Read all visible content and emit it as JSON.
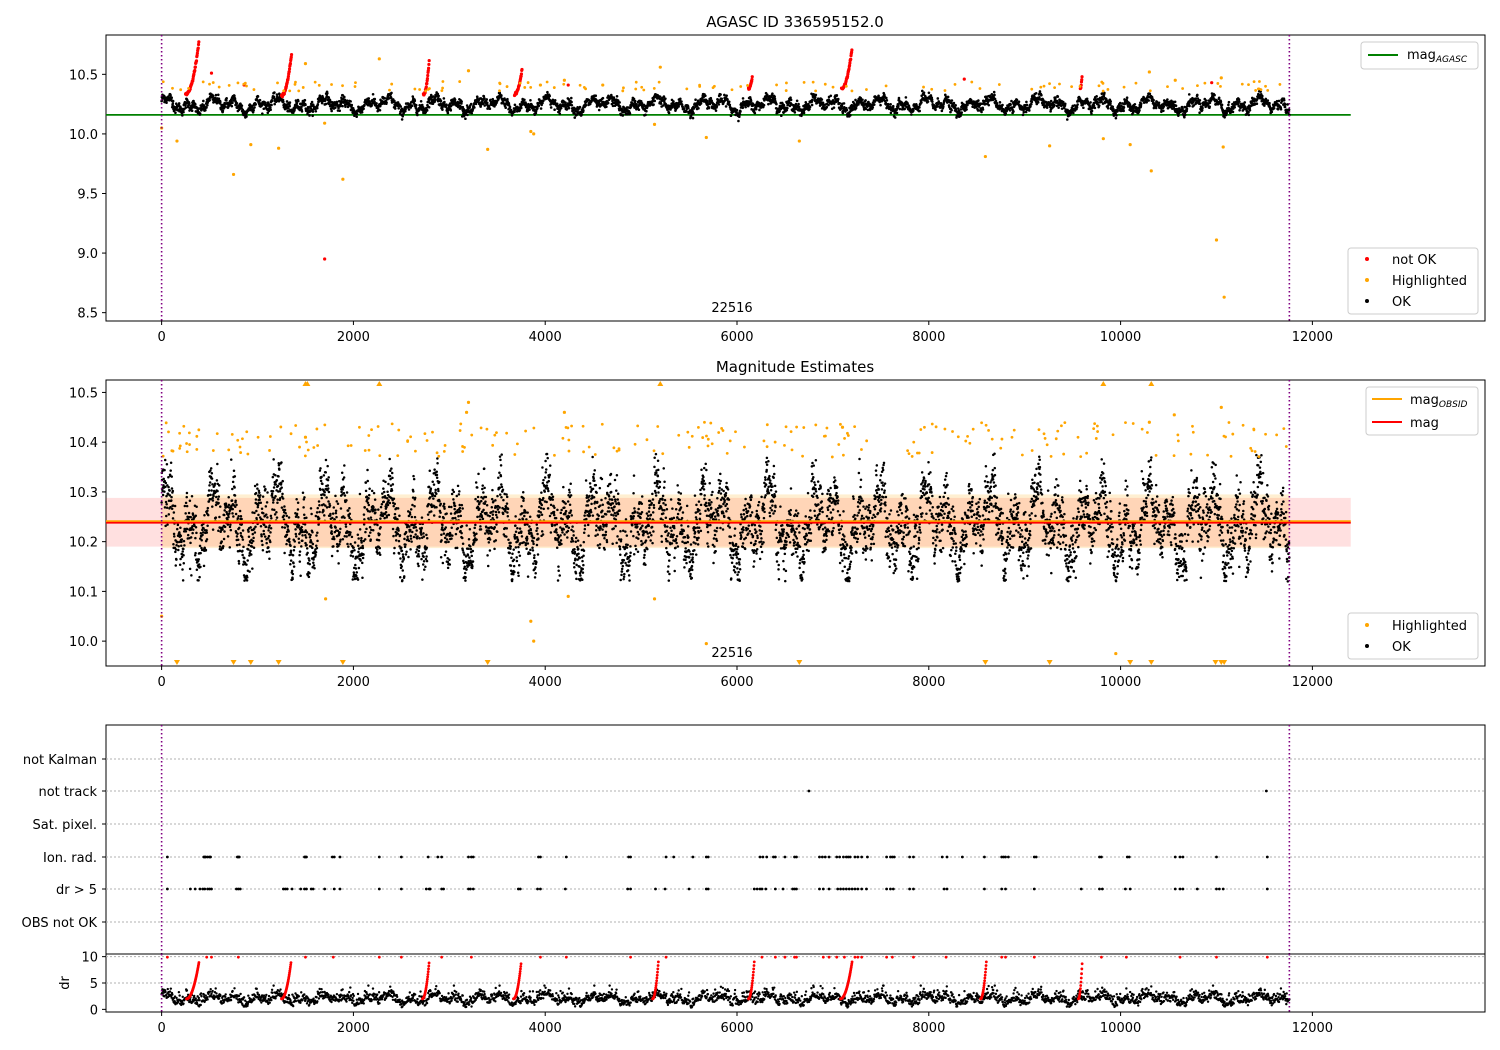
{
  "chart_data": [
    {
      "type": "scatter",
      "title": "AGASC ID 336595152.0",
      "xlabel": "",
      "ylabel": "",
      "xlim": [
        -580,
        13800
      ],
      "ylim": [
        8.43,
        10.83
      ],
      "xticks": [
        0,
        2000,
        4000,
        6000,
        8000,
        10000,
        12000
      ],
      "xtick_labels": [
        "0",
        "2000",
        "4000",
        "6000",
        "8000",
        "10000",
        "12000"
      ],
      "yticks": [
        8.5,
        9.0,
        9.5,
        10.0,
        10.5
      ],
      "ytick_labels": [
        "8.5",
        "9.0",
        "9.5",
        "10.0",
        "10.5"
      ],
      "annotation": "22516",
      "lines": [
        {
          "name": "mag",
          "subscript": "AGASC",
          "color": "#008000",
          "y": 10.16,
          "x_range": [
            -580,
            12400
          ]
        }
      ],
      "vlines": [
        0,
        11760
      ],
      "vline_color": "#800080",
      "series": [
        {
          "name": "not OK",
          "color": "#ff0000",
          "description": "excursions near x=300-390, 1250-1350, 2750-2800, 3700-3760, 6150, 7150-7200"
        },
        {
          "name": "Highlighted",
          "color": "#ffa500",
          "points": [
            [
              0,
              10.05
            ],
            [
              160,
              9.94
            ],
            [
              750,
              9.66
            ],
            [
              930,
              9.91
            ],
            [
              1220,
              9.88
            ],
            [
              1890,
              9.62
            ],
            [
              1700,
              10.09
            ],
            [
              2270,
              10.63
            ],
            [
              3400,
              9.87
            ],
            [
              3880,
              10.0
            ],
            [
              3850,
              10.02
            ],
            [
              5140,
              10.08
            ],
            [
              5200,
              10.56
            ],
            [
              5680,
              9.97
            ],
            [
              6650,
              9.94
            ],
            [
              8590,
              9.81
            ],
            [
              9260,
              9.9
            ],
            [
              9820,
              9.96
            ],
            [
              10320,
              9.69
            ],
            [
              10100,
              9.91
            ],
            [
              11000,
              9.11
            ],
            [
              11080,
              8.63
            ],
            [
              11070,
              9.89
            ],
            [
              1500,
              10.59
            ],
            [
              3200,
              10.53
            ],
            [
              3950,
              10.41
            ],
            [
              4200,
              10.45
            ],
            [
              4600,
              10.41
            ],
            [
              10300,
              10.52
            ],
            [
              10570,
              10.45
            ],
            [
              11050,
              10.47
            ]
          ]
        },
        {
          "name": "OK",
          "color": "#000000",
          "description": "dense band 10.12-10.38, x 0-11760"
        }
      ],
      "legend": {
        "placement": "lower right",
        "entries": [
          "not OK",
          "Highlighted",
          "OK"
        ]
      },
      "legend_lines": {
        "placement": "upper right",
        "entries": [
          "mag"
        ]
      },
      "special_points": [
        [
          1700,
          8.95
        ]
      ]
    },
    {
      "type": "scatter",
      "title": "Magnitude Estimates",
      "xlabel": "",
      "ylabel": "",
      "xlim": [
        -580,
        13800
      ],
      "ylim": [
        9.95,
        10.525
      ],
      "xticks": [
        0,
        2000,
        4000,
        6000,
        8000,
        10000,
        12000
      ],
      "xtick_labels": [
        "0",
        "2000",
        "4000",
        "6000",
        "8000",
        "10000",
        "12000"
      ],
      "yticks": [
        10.0,
        10.1,
        10.2,
        10.3,
        10.4,
        10.5
      ],
      "ytick_labels": [
        "10.0",
        "10.1",
        "10.2",
        "10.3",
        "10.4",
        "10.5"
      ],
      "annotation": "22516",
      "lines": [
        {
          "name": "mag",
          "subscript": "OBSID",
          "color": "#ffa500",
          "y": 10.241,
          "x_range": [
            -580,
            12400
          ]
        },
        {
          "name": "mag",
          "subscript": "",
          "color": "#ff0000",
          "y": 10.238,
          "x_range": [
            -580,
            12400
          ]
        }
      ],
      "bands": [
        {
          "color": "#ff0000",
          "alpha": 0.12,
          "y": [
            10.19,
            10.288
          ]
        },
        {
          "color": "#ffa500",
          "alpha": 0.18,
          "y": [
            10.187,
            10.295
          ]
        }
      ],
      "vlines": [
        0,
        11760
      ],
      "series": [
        {
          "name": "Highlighted",
          "color": "#ffa500"
        },
        {
          "name": "OK",
          "color": "#000000",
          "description": "dense band 10.12-10.38"
        }
      ],
      "up_markers_x": [
        1500,
        1520,
        2270,
        5200,
        9820,
        10320
      ],
      "down_markers_x": [
        160,
        750,
        930,
        1220,
        1890,
        3400,
        6650,
        8590,
        9260,
        10100,
        10320,
        10990,
        11050,
        11080
      ],
      "legend": {
        "placement": "lower right",
        "entries": [
          "Highlighted",
          "OK"
        ]
      },
      "legend_lines": {
        "placement": "upper right",
        "entries": [
          "mag",
          "mag"
        ]
      }
    },
    {
      "type": "scatter",
      "title": "",
      "xlim": [
        -580,
        13800
      ],
      "category_rows": [
        "not Kalman",
        "not track",
        "Sat. pixel.",
        "Ion. rad.",
        "dr > 5",
        "OBS not OK"
      ],
      "flag_points": {
        "not Kalman": [],
        "not track": [
          6750,
          11520
        ],
        "Sat. pixel.": [],
        "Ion. rad.": [
          60,
          440,
          450,
          460,
          480,
          500,
          510,
          790,
          800,
          810,
          1490,
          1500,
          1510,
          1780,
          1800,
          1860,
          2270,
          2500,
          2780,
          2880,
          2920,
          3200,
          3230,
          3250,
          3930,
          3950,
          4220,
          4870,
          4890,
          5260,
          5340,
          5540,
          5680,
          5700,
          6240,
          6270,
          6310,
          6380,
          6400,
          6500,
          6600,
          6620,
          6860,
          6890,
          6920,
          6960,
          7040,
          7070,
          7110,
          7140,
          7160,
          7180,
          7230,
          7260,
          7300,
          7360,
          7560,
          7600,
          7620,
          7640,
          7800,
          7840,
          8140,
          8190,
          8350,
          8580,
          8760,
          8780,
          8800,
          8830,
          9100,
          9120,
          9780,
          9800,
          10070,
          10090,
          10570,
          10620,
          10650,
          11000,
          11530
        ],
        "dr > 5": [
          60,
          300,
          350,
          400,
          430,
          450,
          480,
          500,
          520,
          780,
          800,
          820,
          1270,
          1290,
          1310,
          1360,
          1450,
          1490,
          1510,
          1560,
          1580,
          1700,
          1800,
          1860,
          2270,
          2500,
          2760,
          2790,
          2800,
          2920,
          2940,
          3200,
          3220,
          3250,
          3720,
          3740,
          3920,
          3950,
          4210,
          4860,
          4890,
          5150,
          5250,
          5500,
          5680,
          5700,
          6180,
          6210,
          6240,
          6260,
          6300,
          6400,
          6480,
          6580,
          6600,
          6620,
          6860,
          6900,
          6960,
          7050,
          7080,
          7110,
          7140,
          7170,
          7200,
          7230,
          7260,
          7300,
          7350,
          7560,
          7600,
          7630,
          7800,
          7840,
          8160,
          8190,
          8580,
          8760,
          8800,
          9100,
          9590,
          9780,
          9810,
          10050,
          10100,
          10570,
          10620,
          10650,
          10800,
          11000,
          11030,
          11070,
          11530
        ],
        "OBS not OK": []
      },
      "vlines": [
        0,
        11760
      ]
    },
    {
      "type": "scatter",
      "title": "",
      "ylabel": "dr",
      "xlim": [
        -580,
        13800
      ],
      "ylim": [
        -0.5,
        10.5
      ],
      "xticks": [
        0,
        2000,
        4000,
        6000,
        8000,
        10000,
        12000
      ],
      "xtick_labels": [
        "0",
        "2000",
        "4000",
        "6000",
        "8000",
        "10000",
        "12000"
      ],
      "yticks": [
        0,
        5,
        10
      ],
      "ytick_labels": [
        "0",
        "5",
        "10"
      ],
      "series": [
        {
          "name": "dr OK",
          "color": "#000000"
        },
        {
          "name": "dr > 5",
          "color": "#ff0000"
        }
      ],
      "vlines": [
        0,
        11760
      ]
    }
  ],
  "icons": {
    "legend_marker": "dot",
    "up_marker": "triangle-up",
    "down_marker": "triangle-down"
  }
}
